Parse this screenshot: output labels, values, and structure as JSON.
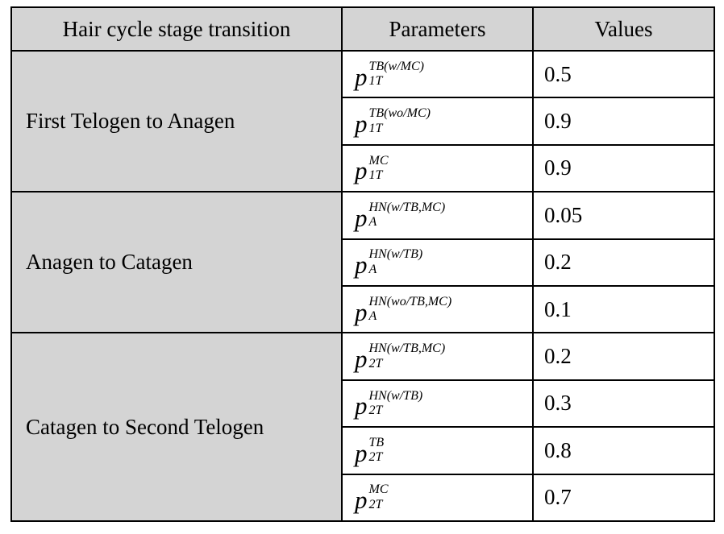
{
  "colors": {
    "cell_bg": "#d4d4d4",
    "border": "#000000",
    "text": "#000000",
    "page_bg": "#ffffff"
  },
  "table": {
    "headers": [
      "Hair cycle stage transition",
      "Parameters",
      "Values"
    ],
    "groups": [
      {
        "transition": "First Telogen to Anagen",
        "rows": [
          {
            "base": "p",
            "sup": "TB(w/MC)",
            "sub": "1T",
            "value": "0.5"
          },
          {
            "base": "p",
            "sup": "TB(wo/MC)",
            "sub": "1T",
            "value": "0.9"
          },
          {
            "base": "p",
            "sup": "MC",
            "sub": "1T",
            "value": "0.9"
          }
        ]
      },
      {
        "transition": "Anagen to Catagen",
        "rows": [
          {
            "base": "p",
            "sup": "HN(w/TB,MC)",
            "sub": "A",
            "value": "0.05"
          },
          {
            "base": "p",
            "sup": "HN(w/TB)",
            "sub": "A",
            "value": "0.2"
          },
          {
            "base": "p",
            "sup": "HN(wo/TB,MC)",
            "sub": "A",
            "value": "0.1"
          }
        ]
      },
      {
        "transition": "Catagen to Second Telogen",
        "rows": [
          {
            "base": "p",
            "sup": "HN(w/TB,MC)",
            "sub": "2T",
            "value": "0.2"
          },
          {
            "base": "p",
            "sup": "HN(w/TB)",
            "sub": "2T",
            "value": "0.3"
          },
          {
            "base": "p",
            "sup": "TB",
            "sub": "2T",
            "value": "0.8"
          },
          {
            "base": "p",
            "sup": "MC",
            "sub": "2T",
            "value": "0.7"
          }
        ]
      }
    ]
  }
}
